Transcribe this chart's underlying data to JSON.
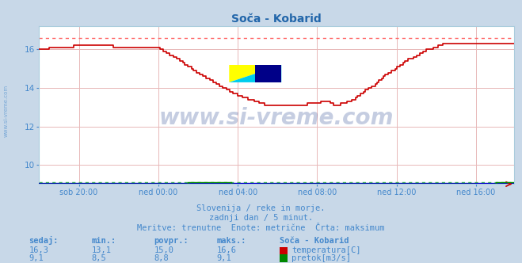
{
  "title": "Soča - Kobarid",
  "bg_color": "#c8d8e8",
  "plot_bg_color": "#ffffff",
  "grid_color": "#e8b8b8",
  "xlabel_ticks": [
    "sob 20:00",
    "ned 00:00",
    "ned 04:00",
    "ned 08:00",
    "ned 12:00",
    "ned 16:00"
  ],
  "ylim": [
    9.0,
    17.2
  ],
  "yticks": [
    10,
    12,
    14,
    16
  ],
  "temp_color": "#cc0000",
  "flow_color": "#008800",
  "blue_line_color": "#0000cc",
  "max_temp_line": 16.6,
  "max_flow_line": 9.1,
  "watermark_text": "www.si-vreme.com",
  "watermark_color": "#1a3a8a",
  "watermark_alpha": 0.25,
  "subtitle1": "Slovenija / reke in morje.",
  "subtitle2": "zadnji dan / 5 minut.",
  "subtitle3": "Meritve: trenutne  Enote: metrične  Črta: maksimum",
  "subtitle_color": "#4488cc",
  "table_header": [
    "sedaj:",
    "min.:",
    "povpr.:",
    "maks.:",
    "Soča - Kobarid"
  ],
  "table_row1": [
    "16,3",
    "13,1",
    "15,0",
    "16,6",
    "temperatura[C]"
  ],
  "table_row2": [
    "9,1",
    "8,5",
    "8,8",
    "9,1",
    "pretok[m3/s]"
  ],
  "table_color": "#4488cc",
  "n_points": 288,
  "x_tick_positions": [
    24,
    72,
    120,
    168,
    216,
    264
  ]
}
